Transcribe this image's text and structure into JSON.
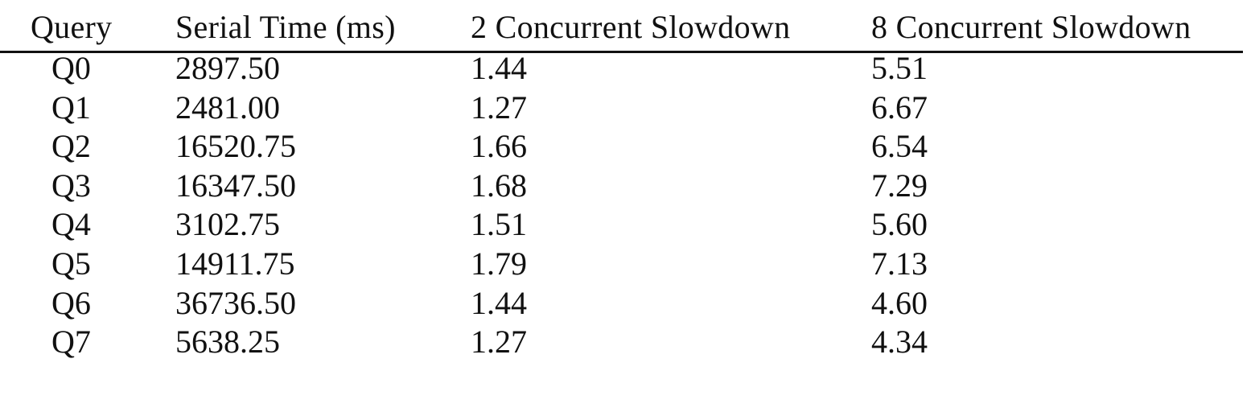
{
  "table": {
    "headers": [
      "Query",
      "Serial Time (ms)",
      "2 Concurrent Slowdown",
      "8 Concurrent Slowdown"
    ],
    "rows": [
      [
        "Q0",
        "2897.50",
        "1.44",
        "5.51"
      ],
      [
        "Q1",
        "2481.00",
        "1.27",
        "6.67"
      ],
      [
        "Q2",
        "16520.75",
        "1.66",
        "6.54"
      ],
      [
        "Q3",
        "16347.50",
        "1.68",
        "7.29"
      ],
      [
        "Q4",
        "3102.75",
        "1.51",
        "5.60"
      ],
      [
        "Q5",
        "14911.75",
        "1.79",
        "7.13"
      ],
      [
        "Q6",
        "36736.50",
        "1.44",
        "4.60"
      ],
      [
        "Q7",
        "5638.25",
        "1.27",
        "4.34"
      ]
    ]
  }
}
